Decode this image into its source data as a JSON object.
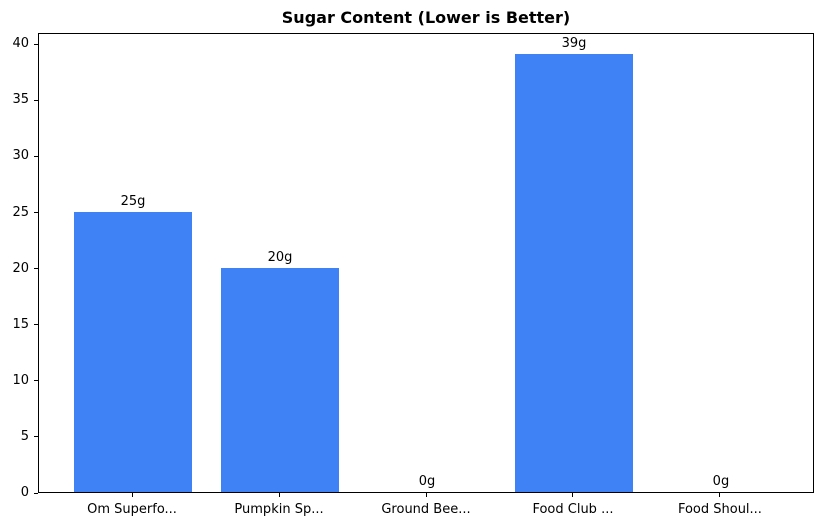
{
  "chart_data": {
    "type": "bar",
    "title": "Sugar Content (Lower is Better)",
    "categories": [
      "Om Superfo...",
      "Pumpkin Sp...",
      "Ground Bee...",
      "Food Club ...",
      "Food Shoul..."
    ],
    "values": [
      25,
      20,
      0,
      39,
      0
    ],
    "bar_labels": [
      "25g",
      "20g",
      "0g",
      "39g",
      "0g"
    ],
    "xlabel": "",
    "ylabel": "",
    "ylim": [
      0,
      41
    ],
    "yticks": [
      0,
      5,
      10,
      15,
      20,
      25,
      30,
      35,
      40
    ],
    "bar_color": "#3e82f5",
    "axis_color": "#000000",
    "text_color": "#000000",
    "background_color": "#ffffff",
    "grid": false,
    "legend": "none",
    "bar_width_fraction": 0.8
  }
}
